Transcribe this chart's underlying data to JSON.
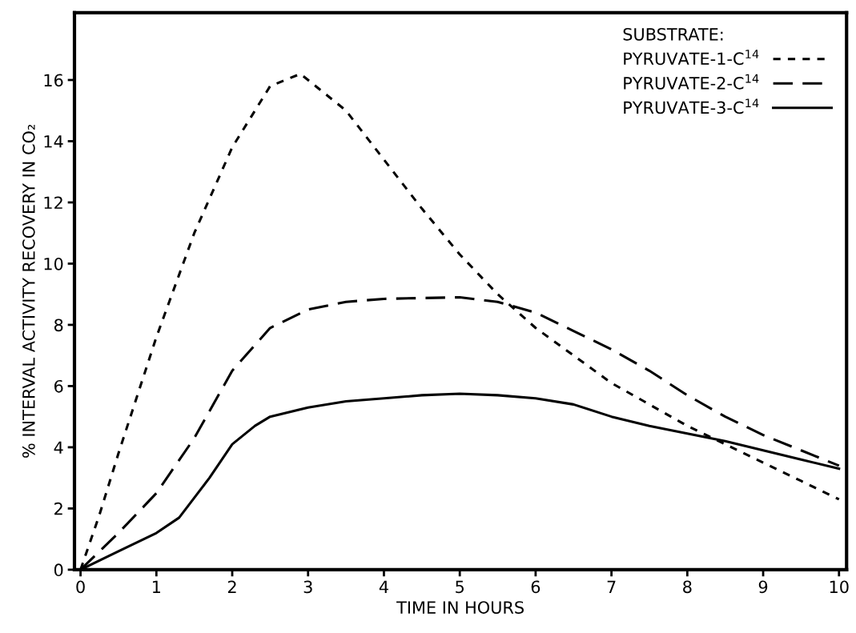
{
  "chart_data": {
    "type": "line",
    "xlabel": "TIME IN HOURS",
    "ylabel": "% INTERVAL ACTIVITY RECOVERY IN CO₂",
    "legend_title": "SUBSTRATE:",
    "legend": "top right",
    "grid": false,
    "marker": "none",
    "xlim": [
      -0.08,
      10.1
    ],
    "ylim": [
      0,
      18.2
    ],
    "xticks": [
      0,
      1,
      2,
      3,
      4,
      5,
      6,
      7,
      8,
      9,
      10
    ],
    "yticks": [
      0,
      2,
      4,
      6,
      8,
      10,
      12,
      14,
      16
    ],
    "series": [
      {
        "name": "PYRUVATE-1-C$^{14}$",
        "color": "#000000",
        "line_style": "dotted",
        "x": [
          0,
          0.25,
          0.5,
          1,
          1.5,
          2,
          2.5,
          2.9,
          3.5,
          4,
          4.5,
          5,
          5.5,
          6,
          6.5,
          7,
          7.5,
          8,
          8.5,
          9,
          9.5,
          10
        ],
        "values": [
          0,
          1.8,
          3.8,
          7.6,
          11,
          13.8,
          15.8,
          16.2,
          15.0,
          13.4,
          11.8,
          10.3,
          9.0,
          7.9,
          7.0,
          6.1,
          5.4,
          4.7,
          4.1,
          3.5,
          2.9,
          2.3
        ]
      },
      {
        "name": "PYRUVATE-2-C$^{14}$",
        "color": "#000000",
        "line_style": "dashed",
        "x": [
          0,
          0.5,
          1,
          1.5,
          2,
          2.5,
          3,
          3.5,
          4,
          5,
          5.5,
          6,
          6.5,
          7,
          7.5,
          8,
          8.5,
          9,
          9.5,
          10
        ],
        "values": [
          0,
          1.2,
          2.5,
          4.3,
          6.5,
          7.9,
          8.5,
          8.75,
          8.85,
          8.9,
          8.75,
          8.4,
          7.8,
          7.2,
          6.5,
          5.7,
          5.0,
          4.4,
          3.9,
          3.4
        ]
      },
      {
        "name": "PYRUVATE-3-C$^{14}$",
        "color": "#000000",
        "line_style": "solid",
        "x": [
          0,
          0.5,
          1,
          1.3,
          1.7,
          2,
          2.3,
          2.5,
          3,
          3.5,
          4,
          4.5,
          5,
          5.5,
          6,
          6.5,
          7,
          7.5,
          8,
          8.5,
          9,
          9.5,
          10
        ],
        "values": [
          0,
          0.6,
          1.2,
          1.7,
          3.0,
          4.1,
          4.7,
          5.0,
          5.3,
          5.5,
          5.6,
          5.7,
          5.75,
          5.7,
          5.6,
          5.4,
          5.0,
          4.7,
          4.45,
          4.2,
          3.9,
          3.6,
          3.3
        ]
      }
    ]
  }
}
